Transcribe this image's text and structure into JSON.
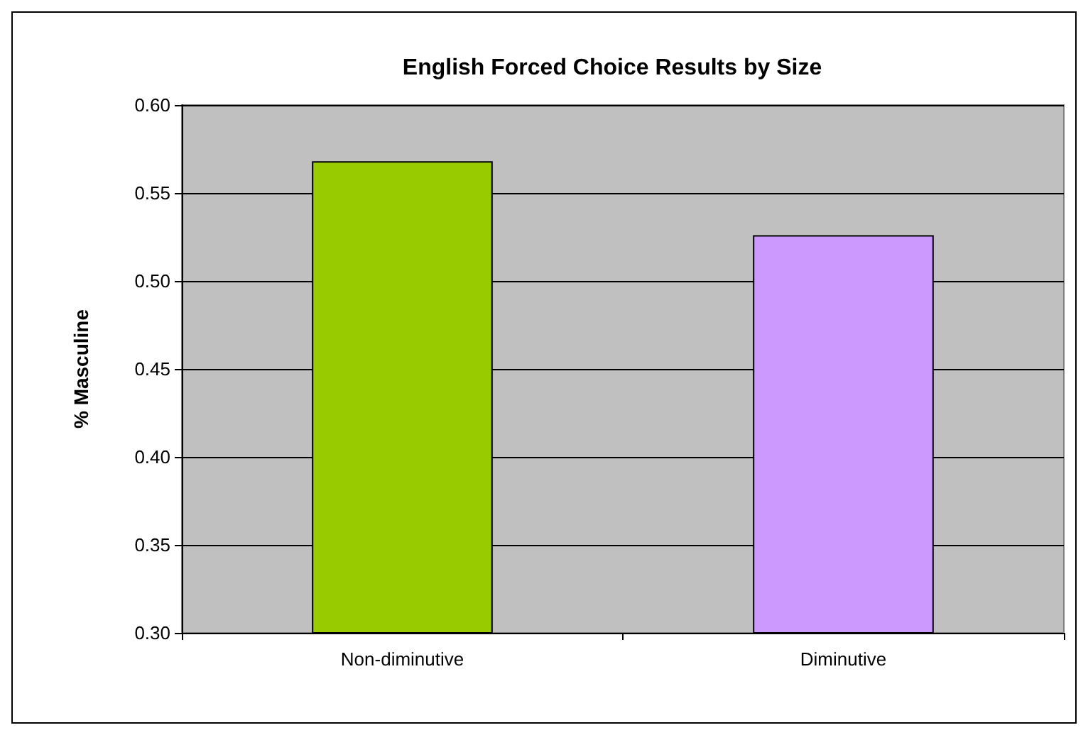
{
  "chart_data": {
    "type": "bar",
    "title": "English Forced Choice Results by Size",
    "ylabel": "% Masculine",
    "categories": [
      "Non-diminutive",
      "Diminutive"
    ],
    "values": [
      0.568,
      0.526
    ],
    "colors": [
      "#99cc00",
      "#cc99ff"
    ],
    "ylim": [
      0.3,
      0.6
    ],
    "yticks": [
      {
        "value": 0.3,
        "label": "0.30"
      },
      {
        "value": 0.35,
        "label": "0.35"
      },
      {
        "value": 0.4,
        "label": "0.40"
      },
      {
        "value": 0.45,
        "label": "0.45"
      },
      {
        "value": 0.5,
        "label": "0.50"
      },
      {
        "value": 0.55,
        "label": "0.55"
      },
      {
        "value": 0.6,
        "label": "0.60"
      }
    ],
    "grid": "y"
  }
}
